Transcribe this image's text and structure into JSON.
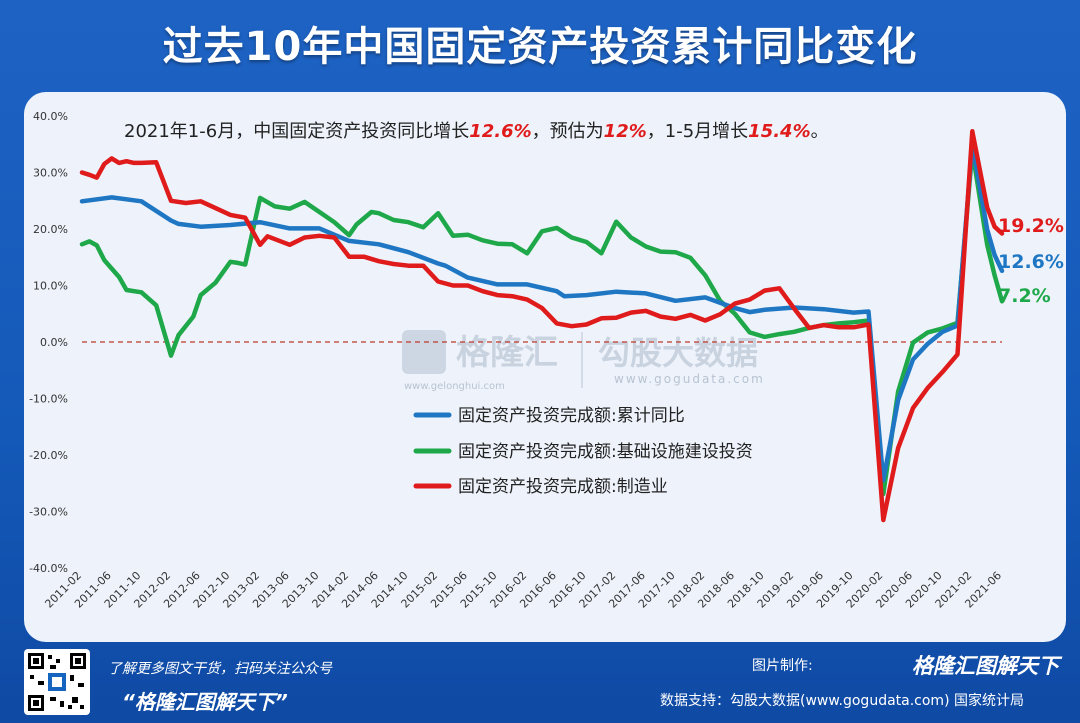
{
  "header": {
    "title": "过去10年中国固定资产投资累计同比变化"
  },
  "annotation": {
    "parts": [
      {
        "text": "2021年1-6月，中国固定资产投资同比增长",
        "highlight": false
      },
      {
        "text": "12.6%",
        "highlight": true
      },
      {
        "text": "，预估为",
        "highlight": false
      },
      {
        "text": "12%",
        "highlight": true
      },
      {
        "text": "，1-5月增长",
        "highlight": false
      },
      {
        "text": "15.4%",
        "highlight": true
      },
      {
        "text": "。",
        "highlight": false
      }
    ]
  },
  "watermark": {
    "brand": "格隆汇",
    "brand_url": "www.gelonghui.com",
    "data_brand": "勾股大数据",
    "data_url": "www.gogudata.com"
  },
  "footer": {
    "left_line1": "了解更多图文干货，扫码关注公众号",
    "left_line2": "“格隆汇图解天下”",
    "right_made_label": "图片制作:",
    "right_made_brand": "格隆汇图解天下",
    "right_source": "数据支持：勾股大数据(www.gogudata.com)   国家统计局"
  },
  "chart_data": {
    "type": "line",
    "ylim": [
      -40,
      40
    ],
    "yticks": [
      "-40.0%",
      "-30.0%",
      "-20.0%",
      "-10.0%",
      "0.0%",
      "10.0%",
      "20.0%",
      "30.0%",
      "40.0%"
    ],
    "ytick_values": [
      -40,
      -30,
      -20,
      -10,
      0,
      10,
      20,
      30,
      40
    ],
    "xticks": [
      "2011-02",
      "2011-06",
      "2011-10",
      "2012-02",
      "2012-06",
      "2012-10",
      "2013-02",
      "2013-06",
      "2013-10",
      "2014-02",
      "2014-06",
      "2014-10",
      "2015-02",
      "2015-06",
      "2015-10",
      "2016-02",
      "2016-06",
      "2016-10",
      "2017-02",
      "2017-06",
      "2017-10",
      "2018-02",
      "2018-06",
      "2018-10",
      "2019-02",
      "2019-06",
      "2019-10",
      "2020-02",
      "2020-06",
      "2020-10",
      "2021-02",
      "2021-06"
    ],
    "x_start": "2011-02",
    "x_end": "2021-06",
    "colors": {
      "total": "#1f77c4",
      "infra": "#1fa84a",
      "mfg": "#e01b1b",
      "zero_line": "#c0392b"
    },
    "legend_position": "center",
    "series": [
      {
        "name": "固定资产投资完成额:累计同比",
        "key": "total",
        "end_label": "12.6%",
        "points": [
          [
            "2011-02",
            24.9
          ],
          [
            "2011-06",
            25.6
          ],
          [
            "2011-10",
            24.9
          ],
          [
            "2012-02",
            21.5
          ],
          [
            "2012-03",
            20.9
          ],
          [
            "2012-06",
            20.4
          ],
          [
            "2012-10",
            20.7
          ],
          [
            "2013-02",
            21.2
          ],
          [
            "2013-06",
            20.1
          ],
          [
            "2013-10",
            20.1
          ],
          [
            "2014-02",
            17.9
          ],
          [
            "2014-06",
            17.3
          ],
          [
            "2014-10",
            15.9
          ],
          [
            "2015-02",
            13.9
          ],
          [
            "2015-03",
            13.5
          ],
          [
            "2015-06",
            11.4
          ],
          [
            "2015-10",
            10.2
          ],
          [
            "2016-02",
            10.2
          ],
          [
            "2016-06",
            9.0
          ],
          [
            "2016-07",
            8.1
          ],
          [
            "2016-10",
            8.3
          ],
          [
            "2017-02",
            8.9
          ],
          [
            "2017-06",
            8.6
          ],
          [
            "2017-10",
            7.3
          ],
          [
            "2018-02",
            7.9
          ],
          [
            "2018-06",
            6.0
          ],
          [
            "2018-08",
            5.3
          ],
          [
            "2018-10",
            5.7
          ],
          [
            "2019-02",
            6.1
          ],
          [
            "2019-06",
            5.8
          ],
          [
            "2019-10",
            5.2
          ],
          [
            "2019-12",
            5.4
          ],
          [
            "2020-02",
            -24.5
          ],
          [
            "2020-04",
            -10.3
          ],
          [
            "2020-06",
            -3.1
          ],
          [
            "2020-08",
            -0.3
          ],
          [
            "2020-10",
            1.8
          ],
          [
            "2020-12",
            2.9
          ],
          [
            "2021-02",
            35.0
          ],
          [
            "2021-04",
            19.9
          ],
          [
            "2021-05",
            15.4
          ],
          [
            "2021-06",
            12.6
          ]
        ]
      },
      {
        "name": "固定资产投资完成额:基础设施建设投资",
        "key": "infra",
        "end_label": "7.2%",
        "points": [
          [
            "2011-02",
            17.3
          ],
          [
            "2011-03",
            17.8
          ],
          [
            "2011-04",
            17.1
          ],
          [
            "2011-05",
            14.5
          ],
          [
            "2011-06",
            13.0
          ],
          [
            "2011-07",
            11.5
          ],
          [
            "2011-08",
            9.2
          ],
          [
            "2011-10",
            8.8
          ],
          [
            "2011-12",
            6.5
          ],
          [
            "2012-02",
            -2.4
          ],
          [
            "2012-03",
            1.2
          ],
          [
            "2012-05",
            4.5
          ],
          [
            "2012-06",
            8.3
          ],
          [
            "2012-08",
            10.5
          ],
          [
            "2012-10",
            14.2
          ],
          [
            "2012-11",
            14.0
          ],
          [
            "2012-12",
            13.7
          ],
          [
            "2013-02",
            25.5
          ],
          [
            "2013-04",
            24.0
          ],
          [
            "2013-06",
            23.6
          ],
          [
            "2013-08",
            24.8
          ],
          [
            "2013-10",
            23.0
          ],
          [
            "2013-12",
            21.2
          ],
          [
            "2014-02",
            18.9
          ],
          [
            "2014-03",
            20.8
          ],
          [
            "2014-05",
            23.0
          ],
          [
            "2014-06",
            22.8
          ],
          [
            "2014-08",
            21.6
          ],
          [
            "2014-10",
            21.2
          ],
          [
            "2014-12",
            20.3
          ],
          [
            "2015-02",
            22.8
          ],
          [
            "2015-04",
            18.8
          ],
          [
            "2015-06",
            19.0
          ],
          [
            "2015-08",
            18.0
          ],
          [
            "2015-10",
            17.4
          ],
          [
            "2015-12",
            17.3
          ],
          [
            "2016-02",
            15.7
          ],
          [
            "2016-04",
            19.6
          ],
          [
            "2016-06",
            20.2
          ],
          [
            "2016-08",
            18.5
          ],
          [
            "2016-10",
            17.7
          ],
          [
            "2016-12",
            15.7
          ],
          [
            "2017-02",
            21.3
          ],
          [
            "2017-04",
            18.5
          ],
          [
            "2017-06",
            16.9
          ],
          [
            "2017-08",
            16.0
          ],
          [
            "2017-10",
            15.9
          ],
          [
            "2017-12",
            14.9
          ],
          [
            "2018-02",
            11.8
          ],
          [
            "2018-04",
            7.3
          ],
          [
            "2018-06",
            5.0
          ],
          [
            "2018-08",
            1.7
          ],
          [
            "2018-10",
            0.9
          ],
          [
            "2018-12",
            1.4
          ],
          [
            "2019-02",
            1.8
          ],
          [
            "2019-04",
            2.5
          ],
          [
            "2019-06",
            3.0
          ],
          [
            "2019-08",
            3.3
          ],
          [
            "2019-10",
            3.5
          ],
          [
            "2019-12",
            3.8
          ],
          [
            "2020-02",
            -26.9
          ],
          [
            "2020-04",
            -8.8
          ],
          [
            "2020-06",
            -0.1
          ],
          [
            "2020-08",
            1.7
          ],
          [
            "2020-10",
            2.4
          ],
          [
            "2020-12",
            3.4
          ],
          [
            "2021-02",
            33.9
          ],
          [
            "2021-04",
            17.2
          ],
          [
            "2021-05",
            11.8
          ],
          [
            "2021-06",
            7.2
          ]
        ]
      },
      {
        "name": "固定资产投资完成额:制造业",
        "key": "mfg",
        "end_label": "19.2%",
        "points": [
          [
            "2011-02",
            30.0
          ],
          [
            "2011-03",
            29.6
          ],
          [
            "2011-04",
            29.1
          ],
          [
            "2011-05",
            31.5
          ],
          [
            "2011-06",
            32.5
          ],
          [
            "2011-07",
            31.7
          ],
          [
            "2011-08",
            32.0
          ],
          [
            "2011-09",
            31.7
          ],
          [
            "2011-10",
            31.7
          ],
          [
            "2011-12",
            31.8
          ],
          [
            "2012-02",
            25.0
          ],
          [
            "2012-04",
            24.6
          ],
          [
            "2012-06",
            24.9
          ],
          [
            "2012-08",
            23.7
          ],
          [
            "2012-10",
            22.5
          ],
          [
            "2012-12",
            22.0
          ],
          [
            "2013-02",
            17.2
          ],
          [
            "2013-03",
            18.7
          ],
          [
            "2013-06",
            17.2
          ],
          [
            "2013-08",
            18.5
          ],
          [
            "2013-10",
            18.8
          ],
          [
            "2013-12",
            18.5
          ],
          [
            "2014-02",
            15.1
          ],
          [
            "2014-04",
            15.1
          ],
          [
            "2014-06",
            14.3
          ],
          [
            "2014-08",
            13.8
          ],
          [
            "2014-10",
            13.5
          ],
          [
            "2014-12",
            13.5
          ],
          [
            "2015-02",
            10.7
          ],
          [
            "2015-04",
            10.0
          ],
          [
            "2015-06",
            10.0
          ],
          [
            "2015-08",
            9.0
          ],
          [
            "2015-10",
            8.3
          ],
          [
            "2015-12",
            8.1
          ],
          [
            "2016-02",
            7.5
          ],
          [
            "2016-04",
            6.0
          ],
          [
            "2016-06",
            3.3
          ],
          [
            "2016-08",
            2.8
          ],
          [
            "2016-10",
            3.1
          ],
          [
            "2016-12",
            4.2
          ],
          [
            "2017-02",
            4.3
          ],
          [
            "2017-04",
            5.2
          ],
          [
            "2017-06",
            5.5
          ],
          [
            "2017-08",
            4.5
          ],
          [
            "2017-10",
            4.1
          ],
          [
            "2017-12",
            4.8
          ],
          [
            "2018-02",
            3.8
          ],
          [
            "2018-04",
            4.9
          ],
          [
            "2018-06",
            6.8
          ],
          [
            "2018-08",
            7.5
          ],
          [
            "2018-10",
            9.1
          ],
          [
            "2018-12",
            9.5
          ],
          [
            "2019-02",
            5.9
          ],
          [
            "2019-04",
            2.5
          ],
          [
            "2019-06",
            3.0
          ],
          [
            "2019-08",
            2.6
          ],
          [
            "2019-10",
            2.6
          ],
          [
            "2019-12",
            3.1
          ],
          [
            "2020-02",
            -31.5
          ],
          [
            "2020-04",
            -18.8
          ],
          [
            "2020-06",
            -11.7
          ],
          [
            "2020-08",
            -8.1
          ],
          [
            "2020-10",
            -5.3
          ],
          [
            "2020-12",
            -2.2
          ],
          [
            "2021-02",
            37.3
          ],
          [
            "2021-04",
            23.8
          ],
          [
            "2021-05",
            20.4
          ],
          [
            "2021-06",
            19.2
          ]
        ]
      }
    ]
  }
}
